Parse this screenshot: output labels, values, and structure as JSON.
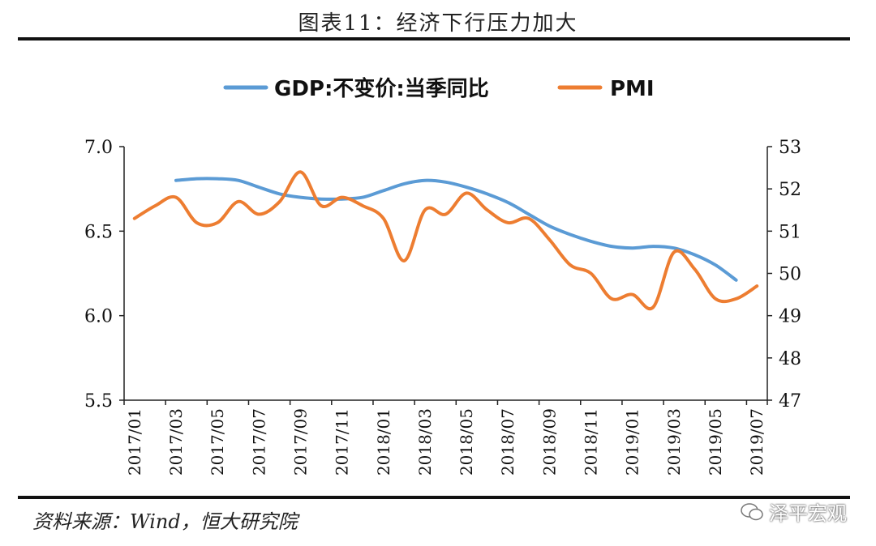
{
  "header": {
    "title": "图表11：经济下行压力加大"
  },
  "footer": {
    "source": "资料来源：Wind，恒大研究院",
    "watermark": "泽平宏观"
  },
  "colors": {
    "gdp": "#5b9bd5",
    "pmi": "#ed7d31",
    "axis": "#222222"
  },
  "chart_data": {
    "type": "line",
    "title": "",
    "x": [
      "2017/01",
      "2017/02",
      "2017/03",
      "2017/04",
      "2017/05",
      "2017/06",
      "2017/07",
      "2017/08",
      "2017/09",
      "2017/10",
      "2017/11",
      "2017/12",
      "2018/01",
      "2018/02",
      "2018/03",
      "2018/04",
      "2018/05",
      "2018/06",
      "2018/07",
      "2018/08",
      "2018/09",
      "2018/10",
      "2018/11",
      "2018/12",
      "2019/01",
      "2019/02",
      "2019/03",
      "2019/04",
      "2019/05",
      "2019/06",
      "2019/07"
    ],
    "x_tick_labels": [
      "2017/01",
      "2017/03",
      "2017/05",
      "2017/07",
      "2017/09",
      "2017/11",
      "2018/01",
      "2018/03",
      "2018/05",
      "2018/07",
      "2018/09",
      "2018/11",
      "2019/01",
      "2019/03",
      "2019/05",
      "2019/07"
    ],
    "y_left": {
      "ylim": [
        5.5,
        7.0
      ],
      "ticks": [
        "5.5",
        "6.0",
        "6.5",
        "7.0"
      ]
    },
    "y_right": {
      "ylim": [
        47,
        53
      ],
      "ticks": [
        "47",
        "48",
        "49",
        "50",
        "51",
        "52",
        "53"
      ]
    },
    "series": [
      {
        "name": "GDP:不变价:当季同比",
        "axis": "left",
        "values": [
          null,
          null,
          6.8,
          6.81,
          6.81,
          6.8,
          6.76,
          6.72,
          6.7,
          6.69,
          6.69,
          6.7,
          6.74,
          6.78,
          6.8,
          6.79,
          6.76,
          6.72,
          6.67,
          6.6,
          6.53,
          6.48,
          6.44,
          6.41,
          6.4,
          6.41,
          6.4,
          6.36,
          6.3,
          6.21,
          null
        ]
      },
      {
        "name": "PMI",
        "axis": "right",
        "values": [
          51.3,
          51.6,
          51.8,
          51.2,
          51.2,
          51.7,
          51.4,
          51.7,
          52.4,
          51.6,
          51.8,
          51.6,
          51.3,
          50.3,
          51.5,
          51.4,
          51.9,
          51.5,
          51.2,
          51.3,
          50.8,
          50.2,
          50.0,
          49.4,
          49.5,
          49.2,
          50.5,
          50.1,
          49.4,
          49.4,
          49.7
        ]
      }
    ],
    "legend": [
      "GDP:不变价:当季同比",
      "PMI"
    ],
    "legend_position": "top-center",
    "grid": false
  }
}
